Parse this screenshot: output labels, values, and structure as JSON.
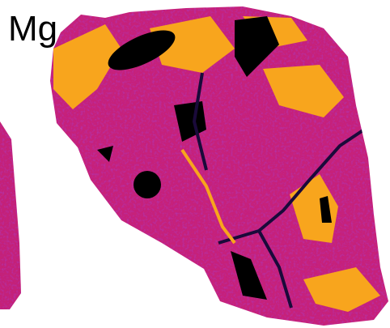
{
  "label": "Mg"
}
